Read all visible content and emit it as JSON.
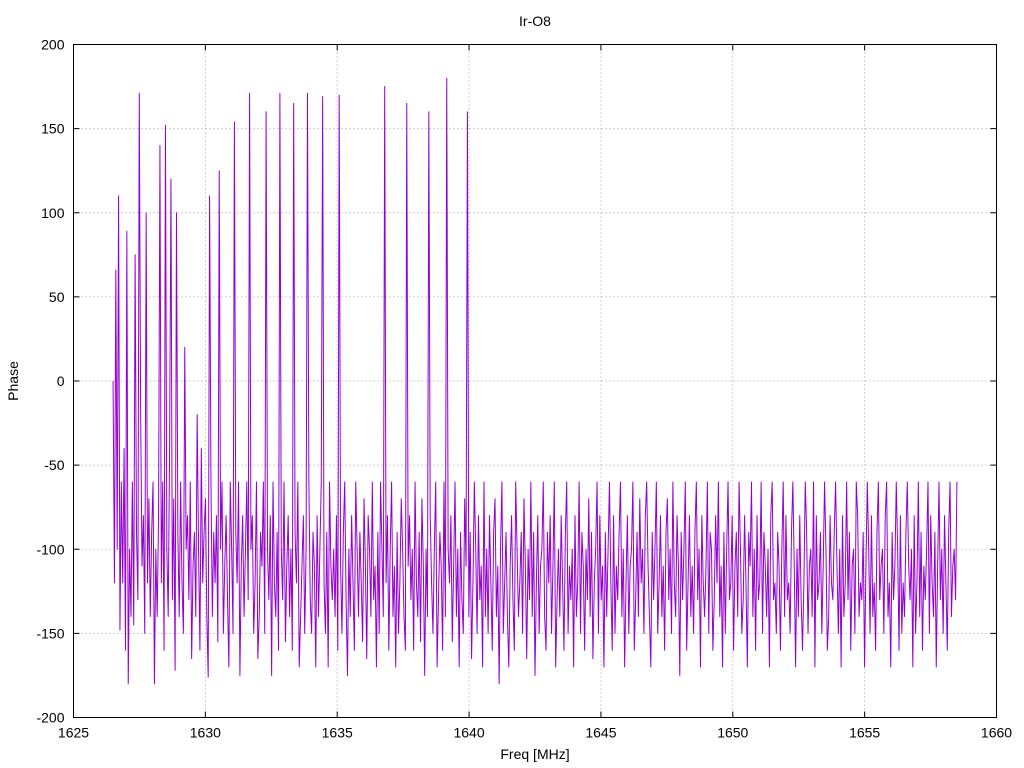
{
  "chart_data": {
    "type": "line",
    "title": "Ir-O8",
    "xlabel": "Freq [MHz]",
    "ylabel": "Phase",
    "xlim": [
      1625,
      1660
    ],
    "ylim": [
      -200,
      200
    ],
    "xticks": [
      "1625",
      "1630",
      "1635",
      "1640",
      "1645",
      "1650",
      "1655",
      "1660"
    ],
    "yticks": [
      "200",
      "150",
      "100",
      "50",
      "0",
      "-50",
      "-100",
      "-150",
      "-200"
    ],
    "grid": true,
    "series_color": "#9400d3",
    "series": [
      {
        "x_start": 1626.5,
        "x_end": 1658.5,
        "values": [
          0,
          -120,
          66,
          -100,
          110,
          -148,
          -60,
          -120,
          -40,
          -160,
          89,
          -180,
          -100,
          -140,
          -60,
          -145,
          75,
          -90,
          -130,
          171,
          -20,
          -110,
          -80,
          -150,
          100,
          -120,
          -70,
          -140,
          -90,
          -60,
          -180,
          -100,
          -140,
          -80,
          140,
          -120,
          -60,
          -160,
          152,
          -100,
          -140,
          -40,
          120,
          -130,
          -70,
          -172,
          100,
          -90,
          -140,
          -60,
          -120,
          -150,
          20,
          -100,
          -80,
          -130,
          -60,
          -165,
          -110,
          -90,
          -140,
          -20,
          -100,
          -160,
          -40,
          -120,
          -90,
          -70,
          -140,
          -176,
          110,
          -60,
          -140,
          -90,
          -120,
          -80,
          -155,
          125,
          -100,
          -60,
          -150,
          -110,
          -80,
          -130,
          -170,
          -60,
          -100,
          -150,
          154,
          -90,
          -120,
          -60,
          -175,
          -110,
          -80,
          -140,
          -100,
          -60,
          -130,
          171,
          -100,
          -80,
          -150,
          -120,
          -60,
          -165,
          -140,
          -90,
          -110,
          -60,
          -150,
          160,
          -100,
          -130,
          -80,
          -175,
          -60,
          -120,
          -140,
          -90,
          -160,
          171,
          -100,
          -130,
          -60,
          -155,
          -110,
          -80,
          -140,
          -100,
          -160,
          165,
          -90,
          -120,
          -60,
          -170,
          -140,
          -110,
          -80,
          -150,
          -100,
          171,
          -60,
          -130,
          -150,
          -90,
          -110,
          -170,
          -80,
          -140,
          -100,
          -60,
          169,
          -120,
          -150,
          -90,
          -170,
          -60,
          -110,
          -130,
          -100,
          -140,
          -80,
          -160,
          170,
          -110,
          -150,
          -90,
          -60,
          -130,
          -175,
          -100,
          -140,
          -80,
          -120,
          -160,
          -60,
          -100,
          -140,
          -90,
          -120,
          -155,
          -70,
          -110,
          -165,
          -80,
          -100,
          -140,
          -60,
          -130,
          -110,
          -170,
          -90,
          -150,
          -60,
          -100,
          -140,
          175,
          -120,
          -80,
          -160,
          -100,
          -60,
          -140,
          -110,
          -170,
          -90,
          -150,
          -120,
          -70,
          -100,
          -140,
          -160,
          165,
          -110,
          -80,
          -130,
          -100,
          -160,
          -60,
          -120,
          -140,
          -90,
          -155,
          -70,
          -110,
          -175,
          -100,
          -140,
          160,
          -80,
          -120,
          -150,
          -100,
          -60,
          -170,
          -130,
          -90,
          -110,
          -160,
          -60,
          -140,
          180,
          -100,
          -120,
          -80,
          -155,
          -110,
          -60,
          -140,
          -100,
          -170,
          -90,
          -130,
          -150,
          -70,
          -110,
          160,
          -140,
          -90,
          -165,
          -120,
          -60,
          -100,
          -150,
          -80,
          -130,
          -110,
          -170,
          -60,
          -140,
          -100,
          -150,
          -80,
          -120,
          -160,
          -90,
          -70,
          -140,
          -110,
          -180,
          -100,
          -60,
          -150,
          -120,
          -90,
          -140,
          -170,
          -110,
          -80,
          -130,
          -160,
          -60,
          -100,
          -140,
          -120,
          -90,
          -150,
          -70,
          -110,
          -165,
          -100,
          -130,
          -60,
          -140,
          -90,
          -175,
          -120,
          -80,
          -150,
          -110,
          -100,
          -60,
          -140,
          -160,
          -90,
          -120,
          -80,
          -150,
          -110,
          -60,
          -170,
          -130,
          -100,
          -140,
          -80,
          -120,
          -160,
          -90,
          -60,
          -150,
          -110,
          -130,
          -100,
          -170,
          -80,
          -140,
          -120,
          -60,
          -150,
          -90,
          -110,
          -160,
          -100,
          -130,
          -70,
          -140,
          -90,
          -165,
          -120,
          -100,
          -60,
          -150,
          -80,
          -130,
          -110,
          -170,
          -90,
          -140,
          -100,
          -60,
          -120,
          -160,
          -80,
          -150,
          -110,
          -130,
          -90,
          -60,
          -140,
          -100,
          -170,
          -120,
          -80,
          -150,
          -110,
          -100,
          -60,
          -160,
          -130,
          -90,
          -140,
          -70,
          -120,
          -100,
          -150,
          -80,
          -60,
          -110,
          -140,
          -170,
          -90,
          -130,
          -100,
          -60,
          -150,
          -120,
          -80,
          -140,
          -110,
          -160,
          -90,
          -70,
          -130,
          -100,
          -150,
          -60,
          -120,
          -140,
          -80,
          -110,
          -175,
          -90,
          -130,
          -100,
          -60,
          -160,
          -120,
          -80,
          -140,
          -110,
          -150,
          -90,
          -60,
          -130,
          -100,
          -170,
          -80,
          -120,
          -140,
          -110,
          -60,
          -150,
          -90,
          -100,
          -160,
          -130,
          -80,
          -120,
          -60,
          -140,
          -110,
          -170,
          -90,
          -150,
          -100,
          -60,
          -130,
          -120,
          -80,
          -160,
          -110,
          -90,
          -140,
          -60,
          -100,
          -150,
          -130,
          -80,
          -120,
          -170,
          -90,
          -110,
          -60,
          -140,
          -100,
          -160,
          -80,
          -130,
          -120,
          -60,
          -150,
          -90,
          -110,
          -140,
          -100,
          -170,
          -80,
          -60,
          -130,
          -120,
          -150,
          -90,
          -110,
          -160,
          -100,
          -60,
          -140,
          -80,
          -130,
          -120,
          -150,
          -90,
          -60,
          -110,
          -170,
          -100,
          -140,
          -80,
          -130,
          -160,
          -120,
          -60,
          -90,
          -150,
          -110,
          -100,
          -140,
          -60,
          -170,
          -80,
          -130,
          -120,
          -90,
          -150,
          -110,
          -60,
          -100,
          -160,
          -140,
          -80,
          -120,
          -130,
          -90,
          -60,
          -110,
          -150,
          -100,
          -170,
          -80,
          -140,
          -120,
          -60,
          -130,
          -90,
          -160,
          -110,
          -100,
          -150,
          -60,
          -80,
          -140,
          -120,
          -130,
          -90,
          -170,
          -110,
          -60,
          -100,
          -150,
          -80,
          -140,
          -120,
          -160,
          -90,
          -60,
          -130,
          -110,
          -100,
          -150,
          -80,
          -60,
          -140,
          -120,
          -170,
          -90,
          -130,
          -110,
          -60,
          -100,
          -160,
          -80,
          -150,
          -120,
          -140,
          -90,
          -60,
          -110,
          -130,
          -100,
          -170,
          -80,
          -150,
          -120,
          -60,
          -140,
          -90,
          -160,
          -110,
          -130,
          -100,
          -60,
          -150,
          -80,
          -120,
          -140,
          -90,
          -170,
          -110,
          -60,
          -130,
          -100,
          -150,
          -80,
          -120,
          -160,
          -90,
          -60,
          -140,
          -110,
          -100,
          -130,
          -60
        ]
      }
    ]
  }
}
